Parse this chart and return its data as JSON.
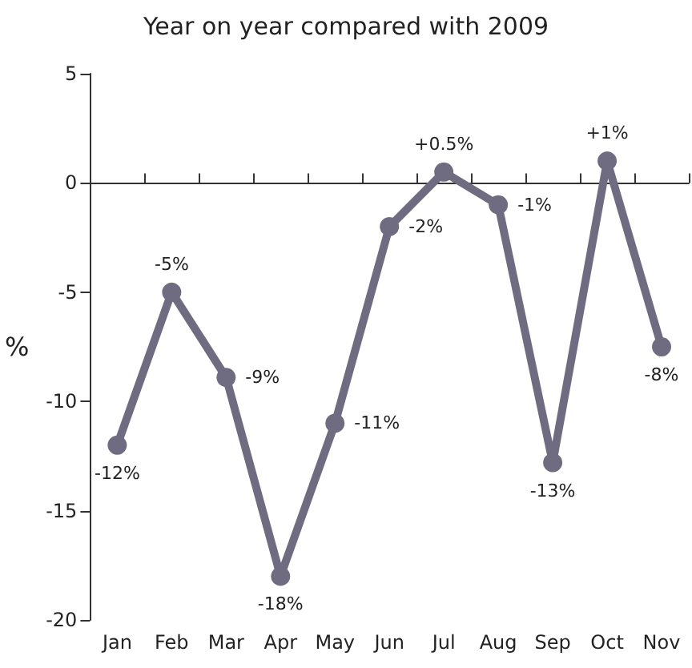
{
  "chart_data": {
    "type": "line",
    "title": "Year on year compared with 2009",
    "ylabel": "%",
    "categories": [
      "Jan",
      "Feb",
      "Mar",
      "Apr",
      "May",
      "Jun",
      "Jul",
      "Aug",
      "Sep",
      "Oct",
      "Nov"
    ],
    "series": [
      {
        "color": "#6f6b80",
        "values": [
          -12,
          -5,
          -8.9,
          -18,
          -11,
          -2,
          0.5,
          -1,
          -12.8,
          1,
          -7.5
        ],
        "value_labels": [
          "-12%",
          "-5%",
          "-9%",
          "-18%",
          "-11%",
          "-2%",
          "+0.5%",
          "-1%",
          "-13%",
          "+1%",
          "-8%"
        ]
      }
    ],
    "ylim": [
      -20,
      5
    ],
    "yticks": [
      -20,
      -15,
      -10,
      -5,
      0,
      5
    ],
    "marker": "circle",
    "line_style": "solid"
  }
}
